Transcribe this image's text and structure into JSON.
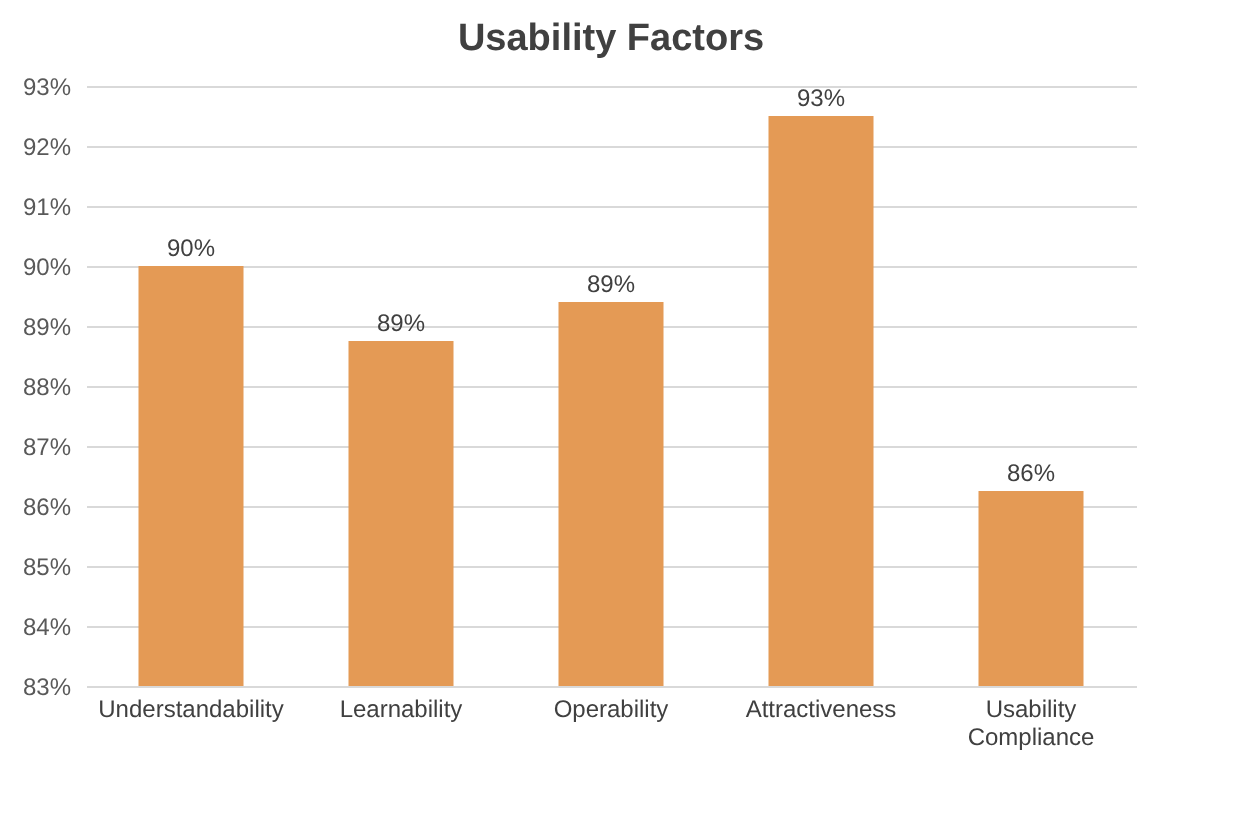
{
  "chart_data": {
    "type": "bar",
    "title": "Usability Factors",
    "categories": [
      "Understandability",
      "Learnability",
      "Operability",
      "Attractiveness",
      "Usability Compliance"
    ],
    "values": [
      90.0,
      88.75,
      89.4,
      92.5,
      86.25
    ],
    "value_labels": [
      "90%",
      "89%",
      "89%",
      "93%",
      "86%"
    ],
    "color": "#e49a55",
    "ylim": [
      83,
      93
    ],
    "yticks": [
      {
        "value": 83,
        "label": "83%"
      },
      {
        "value": 84,
        "label": "84%"
      },
      {
        "value": 85,
        "label": "85%"
      },
      {
        "value": 86,
        "label": "86%"
      },
      {
        "value": 87,
        "label": "87%"
      },
      {
        "value": 88,
        "label": "88%"
      },
      {
        "value": 89,
        "label": "89%"
      },
      {
        "value": 90,
        "label": "90%"
      },
      {
        "value": 91,
        "label": "91%"
      },
      {
        "value": 92,
        "label": "92%"
      },
      {
        "value": 93,
        "label": "93%"
      }
    ],
    "grid": "y"
  }
}
